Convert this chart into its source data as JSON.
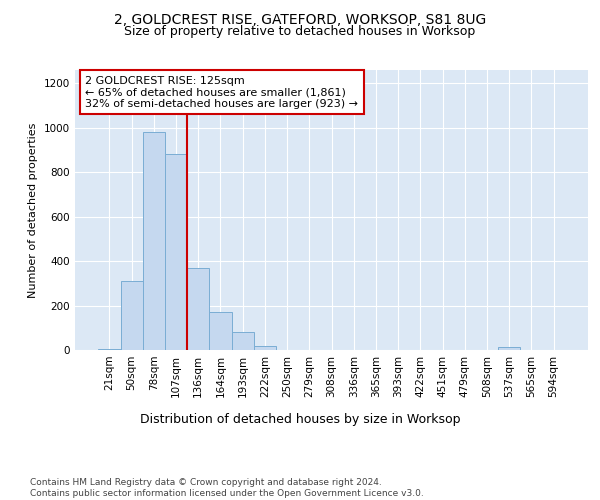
{
  "title1": "2, GOLDCREST RISE, GATEFORD, WORKSOP, S81 8UG",
  "title2": "Size of property relative to detached houses in Worksop",
  "xlabel": "Distribution of detached houses by size in Worksop",
  "ylabel": "Number of detached properties",
  "footnote": "Contains HM Land Registry data © Crown copyright and database right 2024.\nContains public sector information licensed under the Open Government Licence v3.0.",
  "bar_labels": [
    "21sqm",
    "50sqm",
    "78sqm",
    "107sqm",
    "136sqm",
    "164sqm",
    "193sqm",
    "222sqm",
    "250sqm",
    "279sqm",
    "308sqm",
    "336sqm",
    "365sqm",
    "393sqm",
    "422sqm",
    "451sqm",
    "479sqm",
    "508sqm",
    "537sqm",
    "565sqm",
    "594sqm"
  ],
  "bar_values": [
    5,
    310,
    980,
    880,
    370,
    170,
    80,
    20,
    0,
    0,
    0,
    0,
    0,
    0,
    0,
    0,
    0,
    0,
    15,
    0,
    0
  ],
  "bar_color": "#c5d8ef",
  "bar_edgecolor": "#7aadd4",
  "property_line_color": "#cc0000",
  "property_line_x": 4.0,
  "annotation_text": "2 GOLDCREST RISE: 125sqm\n← 65% of detached houses are smaller (1,861)\n32% of semi-detached houses are larger (923) →",
  "annotation_box_facecolor": "#ffffff",
  "annotation_box_edgecolor": "#cc0000",
  "ylim": [
    0,
    1260
  ],
  "yticks": [
    0,
    200,
    400,
    600,
    800,
    1000,
    1200
  ],
  "background_color": "#dce8f5",
  "fig_background": "#ffffff",
  "title1_fontsize": 10,
  "title2_fontsize": 9,
  "ylabel_fontsize": 8,
  "xlabel_fontsize": 9,
  "tick_fontsize": 7.5,
  "annotation_fontsize": 8,
  "footnote_fontsize": 6.5
}
